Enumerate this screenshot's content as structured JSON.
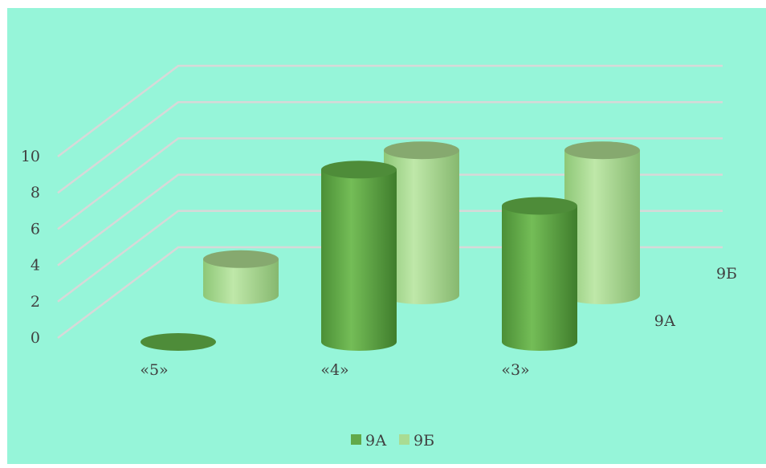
{
  "chart_data": {
    "type": "bar",
    "bar_shape": "3d-cylinder",
    "categories": [
      "«5»",
      "«4»",
      "«3»"
    ],
    "series": [
      {
        "name": "9А",
        "values": [
          0,
          9.5,
          7.5
        ],
        "color": "#62a94a"
      },
      {
        "name": "9Б",
        "values": [
          2,
          8,
          8
        ],
        "color": "#a9dc93"
      }
    ],
    "ylim": [
      0,
      10
    ],
    "yticks": [
      "0",
      "2",
      "4",
      "6",
      "8",
      "10"
    ],
    "depth_labels": [
      "9А",
      "9Б"
    ],
    "grid": true,
    "legend_position": "bottom",
    "background_color": "#96f5d9"
  }
}
